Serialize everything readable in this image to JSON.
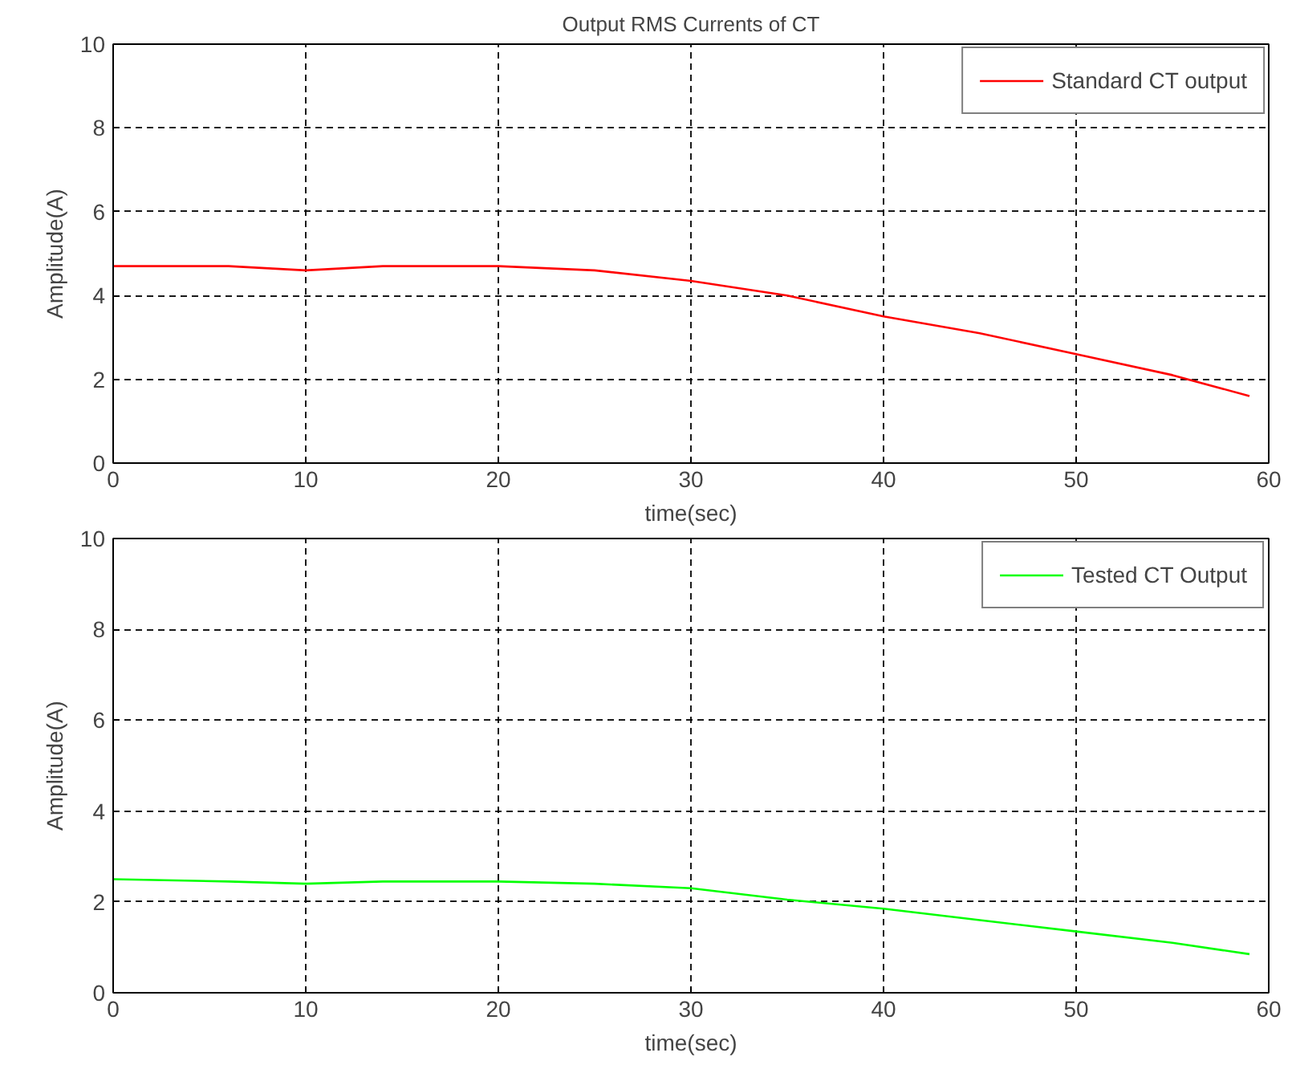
{
  "chart_data": [
    {
      "type": "line",
      "title": "Output RMS Currents of CT",
      "xlabel": "time(sec)",
      "ylabel": "Amplitude(A)",
      "x": [
        0,
        6,
        10,
        14,
        20,
        25,
        30,
        35,
        40,
        45,
        50,
        55,
        59
      ],
      "series": [
        {
          "name": "Standard CT output",
          "color": "#ff0000",
          "values": [
            4.7,
            4.7,
            4.6,
            4.7,
            4.7,
            4.6,
            4.35,
            4.0,
            3.5,
            3.1,
            2.6,
            2.1,
            1.6
          ]
        }
      ],
      "xlim": [
        0,
        60
      ],
      "xticks": [
        0,
        10,
        20,
        30,
        40,
        50,
        60
      ],
      "ylim": [
        0,
        10
      ],
      "yticks": [
        0,
        2,
        4,
        6,
        8,
        10
      ],
      "grid": true,
      "legend": "top right",
      "line_style": "solid"
    },
    {
      "type": "line",
      "xlabel": "time(sec)",
      "ylabel": "Amplitude(A)",
      "x": [
        0,
        6,
        10,
        14,
        20,
        25,
        30,
        35,
        40,
        45,
        50,
        55,
        59
      ],
      "series": [
        {
          "name": "Tested CT Output",
          "color": "#00ff00",
          "values": [
            2.5,
            2.45,
            2.4,
            2.45,
            2.45,
            2.4,
            2.3,
            2.05,
            1.85,
            1.6,
            1.35,
            1.1,
            0.85
          ]
        }
      ],
      "xlim": [
        0,
        60
      ],
      "xticks": [
        0,
        10,
        20,
        30,
        40,
        50,
        60
      ],
      "ylim": [
        0,
        10
      ],
      "yticks": [
        0,
        2,
        4,
        6,
        8,
        10
      ],
      "grid": true,
      "legend": "top right",
      "line_style": "solid"
    }
  ]
}
